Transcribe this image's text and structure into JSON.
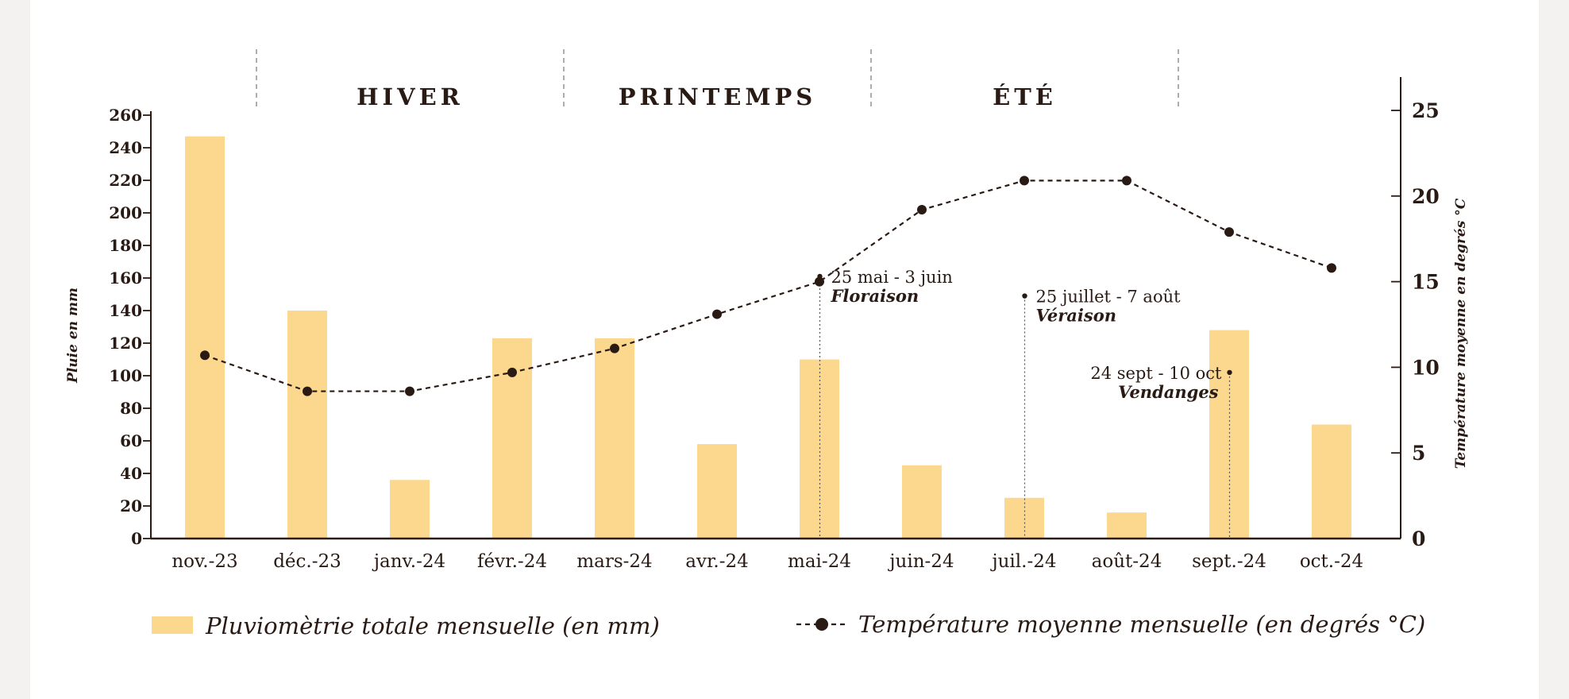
{
  "chart_data": {
    "type": "bar+line",
    "categories": [
      "nov.-23",
      "déc.-23",
      "janv.-24",
      "févr.-24",
      "mars-24",
      "avr.-24",
      "mai-24",
      "juin-24",
      "juil.-24",
      "août-24",
      "sept.-24",
      "oct.-24"
    ],
    "series": [
      {
        "name": "Pluviomètrie totale mensuelle (en mm)",
        "kind": "bar",
        "axis": "left",
        "color": "#fbd88e",
        "values": [
          247,
          140,
          36,
          123,
          123,
          58,
          110,
          45,
          25,
          16,
          128,
          70
        ]
      },
      {
        "name": "Température moyenne mensuelle (en degrés °C)",
        "kind": "line",
        "axis": "right",
        "color": "#2a1a14",
        "style": "dashed",
        "values": [
          10.7,
          8.6,
          8.6,
          9.7,
          11.1,
          13.1,
          15.0,
          19.2,
          20.9,
          20.9,
          17.9,
          15.8
        ]
      }
    ],
    "ylabel_left": "Pluie en mm",
    "ylabel_right": "Température moyenne en degrés °C",
    "ylim_left": [
      0,
      260
    ],
    "yticks_left": [
      "0",
      "20",
      "40",
      "60",
      "80",
      "100",
      "120",
      "140",
      "160",
      "180",
      "200",
      "220",
      "240",
      "260"
    ],
    "ylim_right": [
      0,
      25
    ],
    "yticks_right": [
      "0",
      "5",
      "10",
      "15",
      "20",
      "25"
    ],
    "grid": false,
    "legend_position": "bottom",
    "seasons": [
      {
        "label": "HIVER",
        "from": 1,
        "to": 4
      },
      {
        "label": "PRINTEMPS",
        "from": 4,
        "to": 7
      },
      {
        "label": "ÉTÉ",
        "from": 7,
        "to": 10
      }
    ],
    "annotations": [
      {
        "date": "25 mai - 3 juin",
        "name": "Floraison",
        "at": 6.5,
        "value": 161,
        "align": "left"
      },
      {
        "date": "25 juillet - 7 août",
        "name": "Véraison",
        "at": 8.5,
        "value": 149,
        "align": "left"
      },
      {
        "date": "24 sept - 10 oct",
        "name": "Vendanges",
        "at": 10.5,
        "value": 102,
        "align": "right"
      }
    ]
  }
}
